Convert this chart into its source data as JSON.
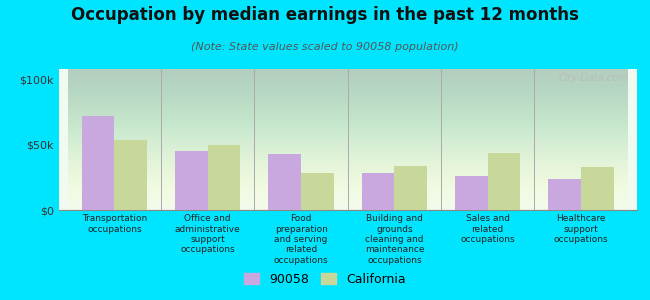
{
  "title": "Occupation by median earnings in the past 12 months",
  "subtitle": "(Note: State values scaled to 90058 population)",
  "categories": [
    "Transportation\noccupations",
    "Office and\nadministrative\nsupport\noccupations",
    "Food\npreparation\nand serving\nrelated\noccupations",
    "Building and\ngrounds\ncleaning and\nmaintenance\noccupations",
    "Sales and\nrelated\noccupations",
    "Healthcare\nsupport\noccupations"
  ],
  "values_90058": [
    72000,
    45000,
    43000,
    28000,
    26000,
    24000
  ],
  "values_california": [
    54000,
    50000,
    28000,
    34000,
    44000,
    33000
  ],
  "bar_color_90058": "#c9a8e0",
  "bar_color_california": "#c8d89a",
  "background_color": "#00e5ff",
  "ytick_labels": [
    "$0",
    "$50k",
    "$100k"
  ],
  "ytick_values": [
    0,
    50000,
    100000
  ],
  "ylim": [
    0,
    108000
  ],
  "legend_labels": [
    "90058",
    "California"
  ],
  "watermark": "City-Data.com",
  "bar_width": 0.35,
  "title_fontsize": 12,
  "subtitle_fontsize": 8,
  "label_fontsize": 6.5,
  "legend_fontsize": 9,
  "ytick_fontsize": 8
}
